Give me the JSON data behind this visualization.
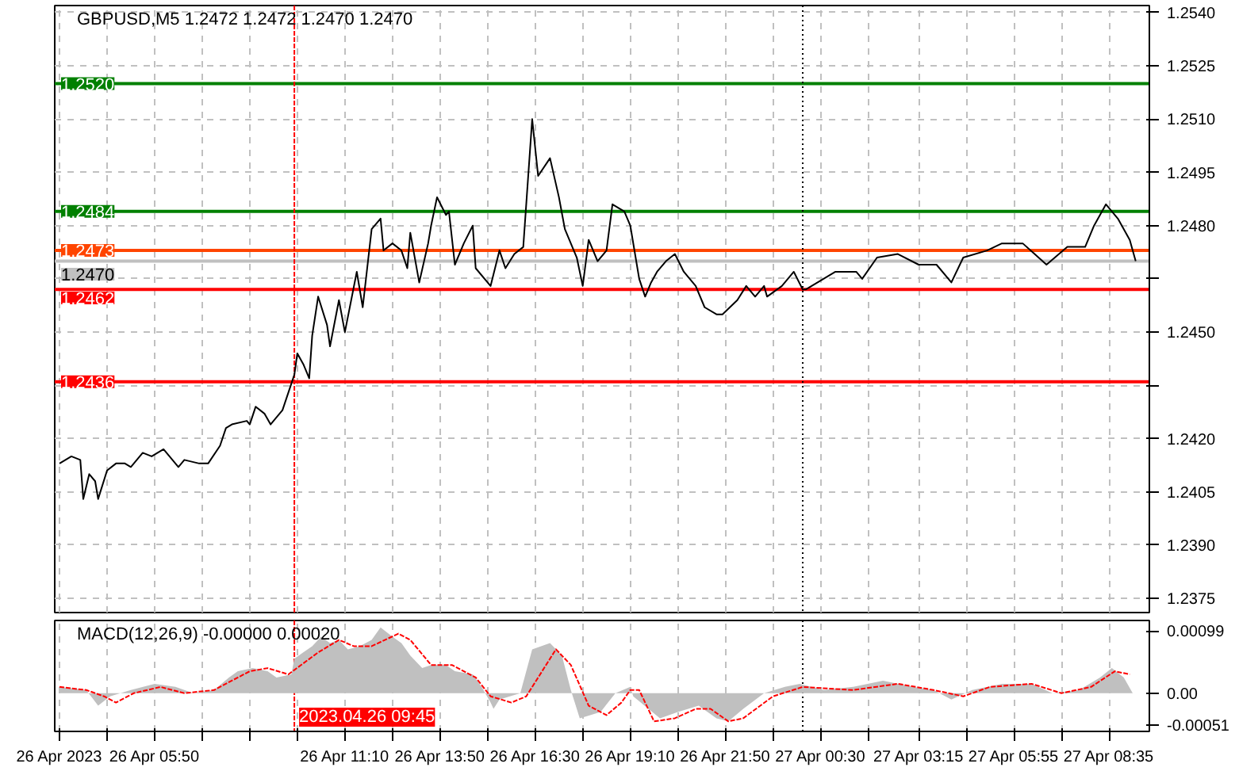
{
  "chart_data": [
    {
      "type": "line",
      "title": "GBPUSD,M5  1.2472 1.2472 1.2470 1.2470",
      "x": [
        "2023-04-26T03:10",
        "2023-04-26T03:30",
        "2023-04-26T03:45",
        "2023-04-26T03:50",
        "2023-04-26T04:00",
        "2023-04-26T04:10",
        "2023-04-26T04:15",
        "2023-04-26T04:30",
        "2023-04-26T04:45",
        "2023-04-26T05:00",
        "2023-04-26T05:10",
        "2023-04-26T05:30",
        "2023-04-26T05:45",
        "2023-04-26T06:05",
        "2023-04-26T06:30",
        "2023-04-26T06:40",
        "2023-04-26T07:05",
        "2023-04-26T07:20",
        "2023-04-26T07:40",
        "2023-04-26T07:50",
        "2023-04-26T08:00",
        "2023-04-26T08:25",
        "2023-04-26T08:30",
        "2023-04-26T08:40",
        "2023-04-26T08:55",
        "2023-04-26T09:05",
        "2023-04-26T09:25",
        "2023-04-26T09:45",
        "2023-04-26T09:50",
        "2023-04-26T10:00",
        "2023-04-26T10:10",
        "2023-04-26T10:15",
        "2023-04-26T10:25",
        "2023-04-26T10:40",
        "2023-04-26T10:45",
        "2023-04-26T11:00",
        "2023-04-26T11:10",
        "2023-04-26T11:30",
        "2023-04-26T11:40",
        "2023-04-26T11:55",
        "2023-04-26T12:10",
        "2023-04-26T12:15",
        "2023-04-26T12:30",
        "2023-04-26T12:45",
        "2023-04-26T12:55",
        "2023-04-26T13:00",
        "2023-04-26T13:15",
        "2023-04-26T13:30",
        "2023-04-26T13:35",
        "2023-04-26T13:45",
        "2023-04-26T14:00",
        "2023-04-26T14:05",
        "2023-04-26T14:15",
        "2023-04-26T14:30",
        "2023-04-26T14:45",
        "2023-04-26T14:50",
        "2023-04-26T15:15",
        "2023-04-26T15:30",
        "2023-04-26T15:40",
        "2023-04-26T15:55",
        "2023-04-26T16:10",
        "2023-04-26T16:25",
        "2023-04-26T16:35",
        "2023-04-26T16:55",
        "2023-04-26T17:10",
        "2023-04-26T17:20",
        "2023-04-26T17:40",
        "2023-04-26T17:50",
        "2023-04-26T18:00",
        "2023-04-26T18:15",
        "2023-04-26T18:30",
        "2023-04-26T18:40",
        "2023-04-26T19:00",
        "2023-04-26T19:10",
        "2023-04-26T19:25",
        "2023-04-26T19:35",
        "2023-04-26T19:45",
        "2023-04-26T19:55",
        "2023-04-26T20:10",
        "2023-04-26T20:25",
        "2023-04-26T20:40",
        "2023-04-26T21:00",
        "2023-04-26T21:15",
        "2023-04-26T21:35",
        "2023-04-26T21:45",
        "2023-04-26T22:10",
        "2023-04-26T22:25",
        "2023-04-26T22:40",
        "2023-04-26T22:55",
        "2023-04-26T23:00",
        "2023-04-26T23:25",
        "2023-04-26T23:45",
        "2023-04-27T00:00",
        "2023-04-27T00:05",
        "2023-04-27T00:25",
        "2023-04-27T00:55",
        "2023-04-27T01:30",
        "2023-04-27T01:40",
        "2023-04-27T02:05",
        "2023-04-27T02:40",
        "2023-04-27T03:15",
        "2023-04-27T03:45",
        "2023-04-27T04:10",
        "2023-04-27T04:30",
        "2023-04-27T05:10",
        "2023-04-27T05:35",
        "2023-04-27T06:10",
        "2023-04-27T06:30",
        "2023-04-27T06:50",
        "2023-04-27T07:25",
        "2023-04-27T07:55",
        "2023-04-27T08:10",
        "2023-04-27T08:30",
        "2023-04-27T08:50",
        "2023-04-27T09:10",
        "2023-04-27T09:20"
      ],
      "series": [
        {
          "color": "#000000",
          "values": [
            1.2413,
            1.2415,
            1.2414,
            1.2403,
            1.241,
            1.2408,
            1.2403,
            1.2411,
            1.2413,
            1.2413,
            1.2412,
            1.2416,
            1.2415,
            1.2417,
            1.2412,
            1.2414,
            1.2413,
            1.2413,
            1.2418,
            1.2423,
            1.2424,
            1.2425,
            1.2424,
            1.2429,
            1.2427,
            1.2424,
            1.2428,
            1.2438,
            1.2444,
            1.2441,
            1.2437,
            1.2449,
            1.246,
            1.2452,
            1.2446,
            1.2459,
            1.245,
            1.2467,
            1.2457,
            1.2479,
            1.2482,
            1.2473,
            1.2475,
            1.2473,
            1.2468,
            1.2478,
            1.2464,
            1.2475,
            1.248,
            1.2488,
            1.2483,
            1.2484,
            1.2469,
            1.2475,
            1.248,
            1.2468,
            1.2463,
            1.2473,
            1.2468,
            1.2472,
            1.2474,
            1.251,
            1.2494,
            1.2499,
            1.2488,
            1.2479,
            1.2471,
            1.2463,
            1.2476,
            1.247,
            1.2473,
            1.2486,
            1.2484,
            1.248,
            1.2465,
            1.246,
            1.2464,
            1.2467,
            1.247,
            1.2472,
            1.2467,
            1.2463,
            1.2457,
            1.2455,
            1.2455,
            1.2459,
            1.2463,
            1.246,
            1.2463,
            1.246,
            1.2463,
            1.2467,
            1.2462,
            1.2462,
            1.2464,
            1.2467,
            1.2467,
            1.2465,
            1.2471,
            1.2472,
            1.2469,
            1.2469,
            1.2464,
            1.2471,
            1.2473,
            1.2475,
            1.2475,
            1.2472,
            1.2469,
            1.2474,
            1.2474,
            1.248,
            1.2486,
            1.2482,
            1.2476,
            1.247
          ]
        }
      ],
      "xlim": [
        "2023-04-26T03:02",
        "2023-04-27T09:43"
      ],
      "ylim": [
        1.2371,
        1.2542
      ],
      "xticks": [
        {
          "value": "2023-04-26T03:10",
          "label": null
        },
        {
          "value": "2023-04-26T04:30",
          "label": null
        },
        {
          "value": "2023-04-26T05:50",
          "label": null
        },
        {
          "value": "2023-04-26T07:10",
          "label": null
        },
        {
          "value": "2023-04-26T08:30",
          "label": null
        },
        {
          "value": "2023-04-26T09:50",
          "label": null
        },
        {
          "value": "2023-04-26T11:10",
          "label": null
        },
        {
          "value": "2023-04-26T12:30",
          "label": null
        },
        {
          "value": "2023-04-26T13:50",
          "label": null
        },
        {
          "value": "2023-04-26T15:10",
          "label": null
        },
        {
          "value": "2023-04-26T16:30",
          "label": null
        },
        {
          "value": "2023-04-26T17:50",
          "label": null
        },
        {
          "value": "2023-04-26T19:10",
          "label": null
        },
        {
          "value": "2023-04-26T20:30",
          "label": null
        },
        {
          "value": "2023-04-26T21:50",
          "label": null
        },
        {
          "value": "2023-04-26T23:10",
          "label": null
        },
        {
          "value": "2023-04-27T00:30",
          "label": null
        },
        {
          "value": "2023-04-27T01:50",
          "label": null
        },
        {
          "value": "2023-04-27T03:15",
          "label": null
        },
        {
          "value": "2023-04-27T04:35",
          "label": null
        },
        {
          "value": "2023-04-27T05:55",
          "label": null
        },
        {
          "value": "2023-04-27T07:15",
          "label": null
        },
        {
          "value": "2023-04-27T08:35",
          "label": null
        }
      ],
      "yticks": [
        {
          "value": 1.2375,
          "label": "1.2375"
        },
        {
          "value": 1.239,
          "label": "1.2390"
        },
        {
          "value": 1.2405,
          "label": "1.2405"
        },
        {
          "value": 1.242,
          "label": "1.2420"
        },
        {
          "value": 1.2435,
          "label": null
        },
        {
          "value": 1.245,
          "label": "1.2450"
        },
        {
          "value": 1.2465,
          "label": null
        },
        {
          "value": 1.248,
          "label": "1.2480"
        },
        {
          "value": 1.2495,
          "label": "1.2495"
        },
        {
          "value": 1.251,
          "label": "1.2510"
        },
        {
          "value": 1.2525,
          "label": "1.2525"
        },
        {
          "value": 1.254,
          "label": "1.2540"
        }
      ],
      "ref_lines": [
        {
          "axis": "y",
          "value": 1.252,
          "label": "1.2520",
          "color": "#008000"
        },
        {
          "axis": "y",
          "value": 1.2484,
          "label": "1.2484",
          "color": "#008000"
        },
        {
          "axis": "y",
          "value": 1.2473,
          "label": "1.2473",
          "color": "#ff4500"
        },
        {
          "axis": "y",
          "value": 1.247,
          "label": "1.2470",
          "color": "#c0c0c0"
        },
        {
          "axis": "y",
          "value": 1.2462,
          "label": "1.2462",
          "color": "#ff0000"
        },
        {
          "axis": "y",
          "value": 1.2436,
          "label": "1.2436",
          "color": "#ff0000"
        },
        {
          "axis": "x",
          "value": "2023-04-26T09:45",
          "color": "#ff0000",
          "line_style": "dashed"
        },
        {
          "axis": "x",
          "value": "2023-04-27T00:00",
          "color": "#000000",
          "line_style": "dotted"
        }
      ],
      "grid": true,
      "tick_labels": "y"
    },
    {
      "type": "line",
      "title": "MACD(12,26,9) -0.00000 0.00020",
      "series": [
        {
          "type": "area",
          "color": "#c0c0c0",
          "x": [
            "2023-04-26T03:10",
            "2023-04-26T03:55",
            "2023-04-26T04:15",
            "2023-04-26T04:35",
            "2023-04-26T05:10",
            "2023-04-26T05:50",
            "2023-04-26T06:25",
            "2023-04-26T06:55",
            "2023-04-26T07:30",
            "2023-04-26T07:55",
            "2023-04-26T08:10",
            "2023-04-26T08:35",
            "2023-04-26T09:00",
            "2023-04-26T09:15",
            "2023-04-26T09:40",
            "2023-04-26T09:45",
            "2023-04-26T10:00",
            "2023-04-26T10:15",
            "2023-04-26T10:30",
            "2023-04-26T10:45",
            "2023-04-26T11:00",
            "2023-04-26T11:15",
            "2023-04-26T11:35",
            "2023-04-26T11:55",
            "2023-04-26T12:10",
            "2023-04-26T12:30",
            "2023-04-26T12:45",
            "2023-04-26T13:00",
            "2023-04-26T13:20",
            "2023-04-26T13:35",
            "2023-04-26T14:00",
            "2023-04-26T14:15",
            "2023-04-26T14:45",
            "2023-04-26T15:00",
            "2023-04-26T15:15",
            "2023-04-26T15:20",
            "2023-04-26T15:30",
            "2023-04-26T16:05",
            "2023-04-26T16:25",
            "2023-04-26T16:55",
            "2023-04-26T17:15",
            "2023-04-26T17:30",
            "2023-04-26T17:45",
            "2023-04-26T18:20",
            "2023-04-26T18:45",
            "2023-04-26T19:10",
            "2023-04-26T19:15",
            "2023-04-26T20:00",
            "2023-04-26T20:30",
            "2023-04-26T21:05",
            "2023-04-26T21:35",
            "2023-04-26T21:55",
            "2023-04-26T22:20",
            "2023-04-26T22:55",
            "2023-04-26T23:30",
            "2023-04-26T23:55",
            "2023-04-27T00:35",
            "2023-04-27T01:25",
            "2023-04-27T02:15",
            "2023-04-27T03:05",
            "2023-04-27T03:40",
            "2023-04-27T04:10",
            "2023-04-27T04:45",
            "2023-04-27T05:35",
            "2023-04-27T06:25",
            "2023-04-27T07:00",
            "2023-04-27T07:45",
            "2023-04-27T08:20",
            "2023-04-27T08:40",
            "2023-04-27T09:00",
            "2023-04-27T09:15"
          ],
          "values": [
            0.0001,
            5e-05,
            -0.0002,
            -5e-05,
            5e-05,
            0.00015,
            0.0001,
            0.0,
            5e-05,
            0.00025,
            0.00035,
            0.0004,
            0.00035,
            0.00025,
            0.0003,
            0.00055,
            0.00065,
            0.00075,
            0.0009,
            0.0008,
            0.00085,
            0.0007,
            0.00075,
            0.00085,
            0.00105,
            0.0009,
            0.0008,
            0.0006,
            0.0004,
            0.00045,
            0.00045,
            0.00035,
            0.0003,
            0.0001,
            -0.00015,
            -0.00025,
            -0.0001,
            0.0,
            0.0007,
            0.0008,
            0.0006,
            5e-05,
            -0.0004,
            -0.0003,
            0.0,
            0.0001,
            -5e-05,
            -0.0004,
            -0.0003,
            -0.0002,
            -0.0004,
            -0.00045,
            -0.00025,
            0.0,
            0.0001,
            0.00015,
            5e-05,
            0.0001,
            0.0002,
            0.0001,
            5e-05,
            -0.0001,
            5e-05,
            0.00015,
            0.00015,
            0.0,
            5e-05,
            0.00025,
            0.0004,
            0.00025,
            0.0
          ]
        },
        {
          "type": "line",
          "color": "#ff0000",
          "line_style": "dashed",
          "x": [
            "2023-04-26T03:10",
            "2023-04-26T03:55",
            "2023-04-26T04:25",
            "2023-04-26T04:45",
            "2023-04-26T05:15",
            "2023-04-26T06:00",
            "2023-04-26T06:40",
            "2023-04-26T07:30",
            "2023-04-26T08:30",
            "2023-04-26T09:00",
            "2023-04-26T09:35",
            "2023-04-26T10:25",
            "2023-04-26T11:00",
            "2023-04-26T11:25",
            "2023-04-26T11:55",
            "2023-04-26T12:40",
            "2023-04-26T13:00",
            "2023-04-26T13:35",
            "2023-04-26T14:10",
            "2023-04-26T14:50",
            "2023-04-26T15:15",
            "2023-04-26T15:50",
            "2023-04-26T16:15",
            "2023-04-26T17:05",
            "2023-04-26T17:30",
            "2023-04-26T18:00",
            "2023-04-26T18:30",
            "2023-04-26T18:55",
            "2023-04-26T19:10",
            "2023-04-26T19:25",
            "2023-04-26T19:50",
            "2023-04-26T20:25",
            "2023-04-26T21:00",
            "2023-04-26T21:25",
            "2023-04-26T21:55",
            "2023-04-26T22:20",
            "2023-04-26T23:10",
            "2023-04-27T00:00",
            "2023-04-27T01:25",
            "2023-04-27T02:40",
            "2023-04-27T03:40",
            "2023-04-27T04:30",
            "2023-04-27T05:15",
            "2023-04-27T06:25",
            "2023-04-27T07:15",
            "2023-04-27T08:05",
            "2023-04-27T08:45",
            "2023-04-27T09:10"
          ],
          "values": [
            0.0001,
            5e-05,
            -5e-05,
            -0.00015,
            0.0,
            0.0001,
            0.0,
            5e-05,
            0.00035,
            0.0004,
            0.0003,
            0.00065,
            0.00085,
            0.00075,
            0.00075,
            0.00095,
            0.00085,
            0.00045,
            0.00045,
            0.00025,
            -5e-05,
            -0.00015,
            -5e-05,
            0.0007,
            0.00045,
            -0.0002,
            -0.00035,
            -0.00015,
            5e-05,
            5e-05,
            -0.00045,
            -0.0004,
            -0.00025,
            -0.00025,
            -0.00045,
            -0.0004,
            -5e-05,
            0.0001,
            5e-05,
            0.00015,
            5e-05,
            -5e-05,
            0.0001,
            0.00015,
            0.0,
            0.0001,
            0.00035,
            0.0003
          ]
        }
      ],
      "xlim": [
        "2023-04-26T03:02",
        "2023-04-27T09:43"
      ],
      "ylim": [
        -0.00061,
        0.00116
      ],
      "xticks": [
        {
          "value": "2023-04-26T03:10",
          "label": "26 Apr 2023"
        },
        {
          "value": "2023-04-26T04:30",
          "label": null
        },
        {
          "value": "2023-04-26T05:50",
          "label": "26 Apr 05:50"
        },
        {
          "value": "2023-04-26T07:10",
          "label": null
        },
        {
          "value": "2023-04-26T08:30",
          "label": null
        },
        {
          "value": "2023-04-26T09:50",
          "label": null
        },
        {
          "value": "2023-04-26T11:10",
          "label": "26 Apr 11:10"
        },
        {
          "value": "2023-04-26T12:30",
          "label": null
        },
        {
          "value": "2023-04-26T13:50",
          "label": "26 Apr 13:50"
        },
        {
          "value": "2023-04-26T15:10",
          "label": null
        },
        {
          "value": "2023-04-26T16:30",
          "label": "26 Apr 16:30"
        },
        {
          "value": "2023-04-26T17:50",
          "label": null
        },
        {
          "value": "2023-04-26T19:10",
          "label": "26 Apr 19:10"
        },
        {
          "value": "2023-04-26T20:30",
          "label": null
        },
        {
          "value": "2023-04-26T21:50",
          "label": "26 Apr 21:50"
        },
        {
          "value": "2023-04-26T23:10",
          "label": null
        },
        {
          "value": "2023-04-27T00:30",
          "label": "27 Apr 00:30"
        },
        {
          "value": "2023-04-27T01:50",
          "label": null
        },
        {
          "value": "2023-04-27T03:15",
          "label": "27 Apr 03:15"
        },
        {
          "value": "2023-04-27T04:35",
          "label": null
        },
        {
          "value": "2023-04-27T05:55",
          "label": "27 Apr 05:55"
        },
        {
          "value": "2023-04-27T07:15",
          "label": null
        },
        {
          "value": "2023-04-27T08:35",
          "label": "27 Apr 08:35"
        }
      ],
      "yticks": [
        -0.00051,
        {
          "value": 0,
          "label": "0.00"
        },
        0.00099
      ],
      "ref_lines": [
        {
          "axis": "x",
          "value": "2023-04-26T09:45",
          "label": "2023.04.26 09:45",
          "color": "#ff0000",
          "line_style": "dashed"
        },
        {
          "axis": "x",
          "value": "2023-04-27T00:00",
          "color": "#000000",
          "line_style": "dotted"
        }
      ],
      "grid": "x"
    }
  ]
}
